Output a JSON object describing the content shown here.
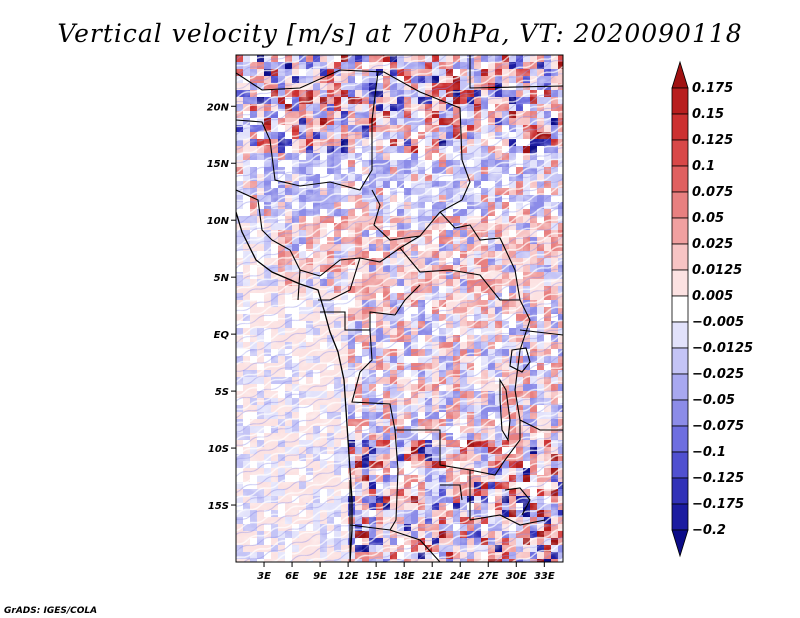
{
  "chart_data": {
    "type": "heatmap",
    "title": "Vertical velocity [m/s] at 700hPa, VT: 2020090118",
    "variable": "Vertical velocity",
    "units": "m/s",
    "level": "700hPa",
    "valid_time": "2020090118",
    "x_axis": {
      "ticks": [
        3,
        6,
        9,
        12,
        15,
        18,
        21,
        24,
        27,
        30,
        33
      ],
      "tick_labels": [
        "3E",
        "6E",
        "9E",
        "12E",
        "15E",
        "18E",
        "21E",
        "24E",
        "27E",
        "30E",
        "33E"
      ],
      "range": [
        0,
        35
      ]
    },
    "y_axis": {
      "ticks": [
        20,
        15,
        10,
        5,
        0,
        -5,
        -10,
        -15
      ],
      "tick_labels": [
        "20N",
        "15N",
        "10N",
        "5N",
        "EQ",
        "5S",
        "10S",
        "15S"
      ],
      "range": [
        -20,
        24.5
      ]
    },
    "colorbar": {
      "levels": [
        0.175,
        0.15,
        0.125,
        0.1,
        0.075,
        0.05,
        0.025,
        0.0125,
        0.005,
        -0.005,
        -0.0125,
        -0.025,
        -0.05,
        -0.075,
        -0.1,
        -0.125,
        -0.175,
        -0.2
      ],
      "level_labels": [
        "0.175",
        "0.15",
        "0.125",
        "0.1",
        "0.075",
        "0.05",
        "0.025",
        "0.0125",
        "0.005",
        "−0.005",
        "−0.0125",
        "−0.025",
        "−0.05",
        "−0.075",
        "−0.1",
        "−0.125",
        "−0.175",
        "−0.2"
      ],
      "colors": [
        "#a01212",
        "#b81e1e",
        "#cc3030",
        "#d84848",
        "#e06060",
        "#e88080",
        "#f0a0a0",
        "#f7c4c4",
        "#fce2e2",
        "#ffffff",
        "#e2e2fb",
        "#c4c4f6",
        "#a8a8f0",
        "#8c8ce8",
        "#6e6ee0",
        "#5050d0",
        "#3232b8",
        "#1c1ca0",
        "#0c0c88"
      ]
    }
  },
  "footer": {
    "credit": "GrADS: IGES/COLA"
  }
}
